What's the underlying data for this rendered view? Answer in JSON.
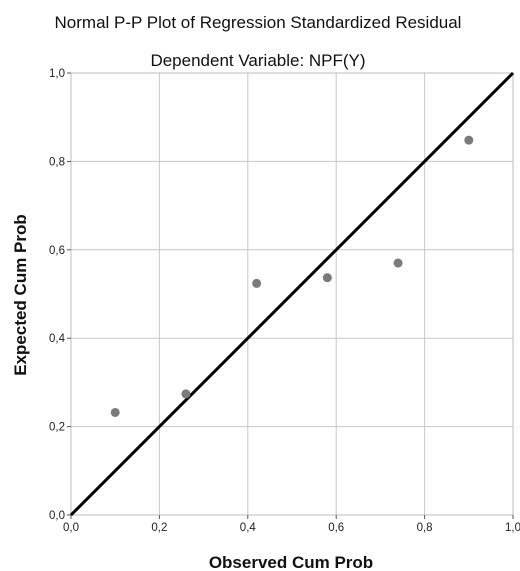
{
  "chart_data": {
    "type": "scatter",
    "title": "Normal P-P Plot of Regression Standardized Residual",
    "subtitle": "Dependent Variable: NPF(Y)",
    "xlabel": "Observed Cum Prob",
    "ylabel": "Expected Cum Prob",
    "xlim": [
      0,
      1
    ],
    "ylim": [
      0,
      1
    ],
    "x_ticks": [
      "0,0",
      "0,2",
      "0,4",
      "0,6",
      "0,8",
      "1,0"
    ],
    "y_ticks": [
      "0,0",
      "0,2",
      "0,4",
      "0,6",
      "0,8",
      "1,0"
    ],
    "grid": true,
    "points": [
      {
        "x": 0.1,
        "y": 0.232
      },
      {
        "x": 0.26,
        "y": 0.274
      },
      {
        "x": 0.42,
        "y": 0.524
      },
      {
        "x": 0.58,
        "y": 0.537
      },
      {
        "x": 0.74,
        "y": 0.57
      },
      {
        "x": 0.9,
        "y": 0.848
      }
    ],
    "reference_line": {
      "from": [
        0,
        0
      ],
      "to": [
        1,
        1
      ]
    },
    "colors": {
      "point": "#7a7a7a",
      "line": "#000000",
      "grid": "#c8c8c8",
      "frame": "#bdbdbd"
    }
  }
}
